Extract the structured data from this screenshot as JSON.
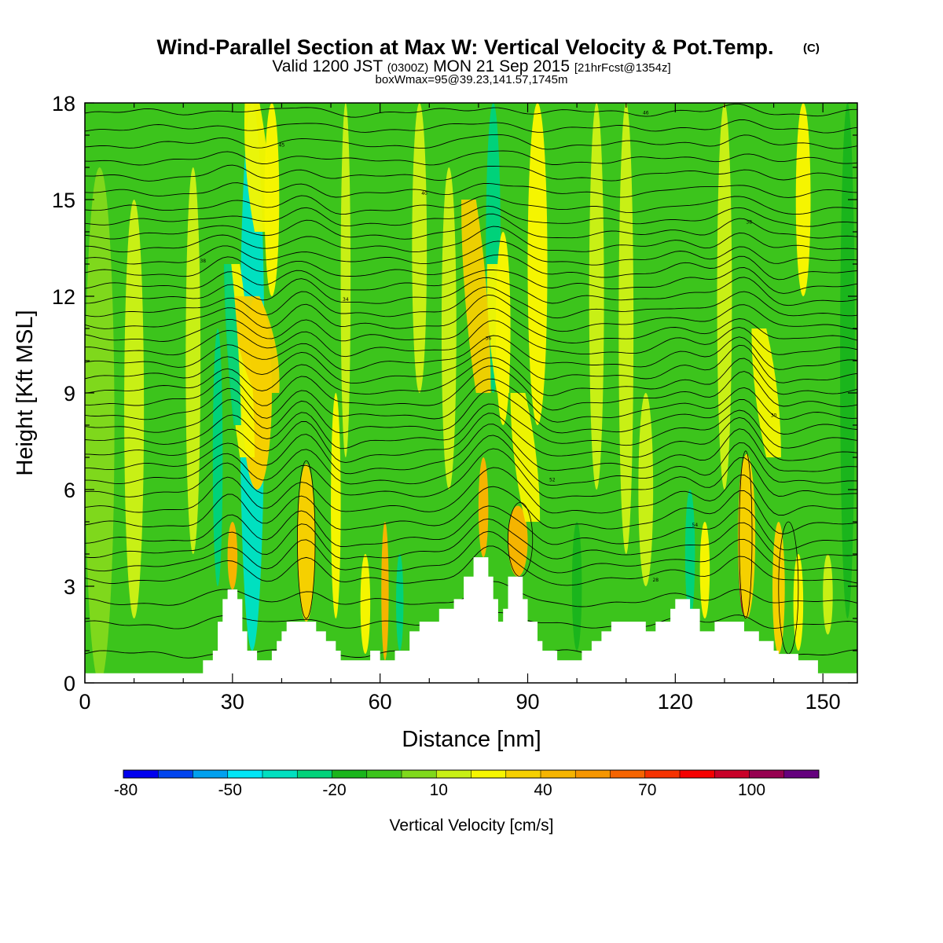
{
  "chart_data": {
    "type": "heatmap",
    "title": "Wind-Parallel Section at Max W: Vertical Velocity & Pot.Temp.",
    "title_mark": "(C)",
    "subtitle": {
      "prefix": "Valid 1200 JST",
      "utc": "(0300Z)",
      "date": "MON 21 Sep 2015",
      "forecast": "[21hrFcst@1354z]"
    },
    "subtitle2": "boxWmax=95@39.23,141.57,1745m",
    "xlabel": "Distance [nm]",
    "ylabel": "Height [Kft MSL]",
    "xlim": [
      0,
      157
    ],
    "ylim": [
      0,
      18
    ],
    "x_ticks": [
      0,
      30,
      60,
      90,
      120,
      150
    ],
    "y_ticks": [
      0,
      3,
      6,
      9,
      12,
      15,
      18
    ],
    "colorbar": {
      "title": "Vertical Velocity [cm/s]",
      "colors": [
        "#0000ee",
        "#0044ee",
        "#00a0ee",
        "#00e5f5",
        "#00e0c0",
        "#00d27a",
        "#1ab51c",
        "#3cc41c",
        "#7fd81c",
        "#c8f015",
        "#f5f500",
        "#f5d000",
        "#f5b400",
        "#f59600",
        "#f56400",
        "#f53200",
        "#f50000",
        "#c80028",
        "#960050",
        "#64007d"
      ],
      "labels": [
        "-80",
        "-50",
        "-20",
        "10",
        "40",
        "70",
        "100"
      ]
    },
    "w_columns": [
      {
        "x": 3,
        "w": 6,
        "top": 16,
        "bot": 0,
        "v": 8
      },
      {
        "x": 10,
        "w": 4,
        "top": 15,
        "bot": 2,
        "v": 10
      },
      {
        "x": 17,
        "w": 5,
        "top": 16,
        "bot": 0,
        "v": -10
      },
      {
        "x": 22,
        "w": 3,
        "top": 16,
        "bot": 4,
        "v": 10
      },
      {
        "x": 27,
        "w": 2,
        "top": 11,
        "bot": 3,
        "v": -25
      },
      {
        "x": 30,
        "w": 2,
        "top": 5,
        "bot": 2.9,
        "v": 40
      },
      {
        "x": 34,
        "w": 5,
        "top": 18,
        "bot": 1,
        "v": -35
      },
      {
        "x": 35,
        "w": 6,
        "top": 12,
        "bot": 6,
        "v": 30
      },
      {
        "x": 38,
        "w": 3,
        "top": 18,
        "bot": 12,
        "v": 25
      },
      {
        "x": 45,
        "w": 2.2,
        "top": 6.5,
        "bot": 2,
        "v": 90
      },
      {
        "x": 45,
        "w": 3.5,
        "top": 6.8,
        "bot": 1.9,
        "v": 35
      },
      {
        "x": 51,
        "w": 2,
        "top": 9,
        "bot": 2,
        "v": 20
      },
      {
        "x": 53,
        "w": 2,
        "top": 18,
        "bot": 7,
        "v": 15
      },
      {
        "x": 57,
        "w": 2,
        "top": 4,
        "bot": 0.9,
        "v": 25
      },
      {
        "x": 61,
        "w": 1.5,
        "top": 5,
        "bot": 0.7,
        "v": 45
      },
      {
        "x": 64,
        "w": 1.5,
        "top": 4,
        "bot": 1,
        "v": -25
      },
      {
        "x": 68,
        "w": 3,
        "top": 18,
        "bot": 9,
        "v": 15
      },
      {
        "x": 74,
        "w": 3,
        "top": 16,
        "bot": 6,
        "v": 10
      },
      {
        "x": 81,
        "w": 2,
        "top": 7,
        "bot": 3.9,
        "v": 40
      },
      {
        "x": 83,
        "w": 3,
        "top": 18,
        "bot": 9,
        "v": -30
      },
      {
        "x": 85,
        "w": 3,
        "top": 14,
        "bot": 8,
        "v": 25
      },
      {
        "x": 88,
        "w": 4,
        "top": 5.5,
        "bot": 3.3,
        "v": 45
      },
      {
        "x": 92,
        "w": 4,
        "top": 18,
        "bot": 8,
        "v": 25
      },
      {
        "x": 100,
        "w": 2,
        "top": 5,
        "bot": 1,
        "v": -15
      },
      {
        "x": 104,
        "w": 3,
        "top": 18,
        "bot": 6,
        "v": 15
      },
      {
        "x": 110,
        "w": 3,
        "top": 18,
        "bot": 4,
        "v": 10
      },
      {
        "x": 114,
        "w": 3,
        "top": 9,
        "bot": 3,
        "v": 15
      },
      {
        "x": 123,
        "w": 2,
        "top": 6,
        "bot": 2,
        "v": -25
      },
      {
        "x": 126,
        "w": 2,
        "top": 5,
        "bot": 2,
        "v": 20
      },
      {
        "x": 130,
        "w": 3,
        "top": 18,
        "bot": 6,
        "v": 15
      },
      {
        "x": 134,
        "w": 1.4,
        "top": 5.3,
        "bot": 2.4,
        "v": 115
      },
      {
        "x": 134,
        "w": 2.5,
        "top": 6.9,
        "bot": 2.1,
        "v": 90
      },
      {
        "x": 134.5,
        "w": 3.5,
        "top": 7.1,
        "bot": 2,
        "v": 35
      },
      {
        "x": 141,
        "w": 2.5,
        "top": 5,
        "bot": 0.9,
        "v": 35
      },
      {
        "x": 145,
        "w": 2,
        "top": 4,
        "bot": 1,
        "v": 20
      },
      {
        "x": 146,
        "w": 3,
        "top": 18,
        "bot": 12,
        "v": 25
      },
      {
        "x": 151,
        "w": 2,
        "top": 4,
        "bot": 1.5,
        "v": 10
      },
      {
        "x": 155,
        "w": 3,
        "top": 18,
        "bot": 2,
        "v": -15
      }
    ],
    "w_slants": [
      {
        "x0": 33,
        "y0": 7,
        "x1": 30,
        "y1": 13,
        "w": 3,
        "v": 25
      },
      {
        "x0": 37,
        "y0": 9,
        "x1": 33,
        "y1": 12,
        "w": 5,
        "v": 30
      },
      {
        "x0": 36,
        "y0": 14,
        "x1": 34,
        "y1": 18,
        "w": 3,
        "v": 25
      },
      {
        "x0": 81,
        "y0": 9,
        "x1": 78,
        "y1": 15,
        "w": 3,
        "v": 30
      },
      {
        "x0": 85,
        "y0": 9,
        "x1": 83,
        "y1": 13,
        "w": 2.5,
        "v": 25
      },
      {
        "x0": 91,
        "y0": 5,
        "x1": 88,
        "y1": 9,
        "w": 3,
        "v": 25
      },
      {
        "x0": 140,
        "y0": 7,
        "x1": 137,
        "y1": 11,
        "w": 3,
        "v": 20
      },
      {
        "x0": 31,
        "y0": 8,
        "x1": 29,
        "y1": 13,
        "w": 1.5,
        "v": -30
      }
    ],
    "terrain": [
      [
        0,
        0.3
      ],
      [
        24,
        0.3
      ],
      [
        24,
        0.7
      ],
      [
        26,
        0.7
      ],
      [
        26,
        1.0
      ],
      [
        27,
        1.0
      ],
      [
        27,
        1.9
      ],
      [
        28,
        1.9
      ],
      [
        28,
        2.6
      ],
      [
        29,
        2.6
      ],
      [
        29,
        2.9
      ],
      [
        31,
        2.9
      ],
      [
        31,
        2.6
      ],
      [
        32,
        2.6
      ],
      [
        32,
        1.6
      ],
      [
        33,
        1.6
      ],
      [
        33,
        1.0
      ],
      [
        35,
        1.0
      ],
      [
        35,
        0.7
      ],
      [
        38,
        0.7
      ],
      [
        38,
        1.0
      ],
      [
        39,
        1.0
      ],
      [
        39,
        1.3
      ],
      [
        40,
        1.3
      ],
      [
        40,
        1.6
      ],
      [
        41,
        1.6
      ],
      [
        41,
        1.9
      ],
      [
        47,
        1.9
      ],
      [
        47,
        1.6
      ],
      [
        49,
        1.6
      ],
      [
        49,
        1.3
      ],
      [
        51,
        1.3
      ],
      [
        51,
        1.0
      ],
      [
        52,
        1.0
      ],
      [
        52,
        0.7
      ],
      [
        58,
        0.7
      ],
      [
        58,
        1.0
      ],
      [
        60,
        1.0
      ],
      [
        60,
        0.7
      ],
      [
        63,
        0.7
      ],
      [
        63,
        1.0
      ],
      [
        66,
        1.0
      ],
      [
        66,
        1.6
      ],
      [
        68,
        1.6
      ],
      [
        68,
        1.9
      ],
      [
        72,
        1.9
      ],
      [
        72,
        2.3
      ],
      [
        75,
        2.3
      ],
      [
        75,
        2.6
      ],
      [
        77,
        2.6
      ],
      [
        77,
        3.3
      ],
      [
        79,
        3.3
      ],
      [
        79,
        3.9
      ],
      [
        82,
        3.9
      ],
      [
        82,
        3.3
      ],
      [
        83,
        3.3
      ],
      [
        83,
        2.6
      ],
      [
        84,
        2.6
      ],
      [
        84,
        1.9
      ],
      [
        85,
        1.9
      ],
      [
        85,
        2.3
      ],
      [
        86,
        2.3
      ],
      [
        86,
        3.3
      ],
      [
        89,
        3.3
      ],
      [
        89,
        2.6
      ],
      [
        90,
        2.6
      ],
      [
        90,
        1.9
      ],
      [
        92,
        1.9
      ],
      [
        92,
        1.3
      ],
      [
        93,
        1.3
      ],
      [
        93,
        1.0
      ],
      [
        96,
        1.0
      ],
      [
        96,
        0.7
      ],
      [
        101,
        0.7
      ],
      [
        101,
        1.0
      ],
      [
        103,
        1.0
      ],
      [
        103,
        1.3
      ],
      [
        105,
        1.3
      ],
      [
        105,
        1.6
      ],
      [
        107,
        1.6
      ],
      [
        107,
        1.9
      ],
      [
        114,
        1.9
      ],
      [
        114,
        1.6
      ],
      [
        116,
        1.6
      ],
      [
        116,
        1.9
      ],
      [
        119,
        1.9
      ],
      [
        119,
        2.3
      ],
      [
        120,
        2.3
      ],
      [
        120,
        2.6
      ],
      [
        123,
        2.6
      ],
      [
        123,
        2.3
      ],
      [
        125,
        2.3
      ],
      [
        125,
        1.6
      ],
      [
        128,
        1.6
      ],
      [
        128,
        1.9
      ],
      [
        134,
        1.9
      ],
      [
        134,
        1.6
      ],
      [
        137,
        1.6
      ],
      [
        137,
        1.3
      ],
      [
        140,
        1.3
      ],
      [
        140,
        1.0
      ],
      [
        141,
        1.0
      ],
      [
        141,
        0.9
      ],
      [
        145,
        0.9
      ],
      [
        145,
        0.7
      ],
      [
        149,
        0.7
      ],
      [
        149,
        0.3
      ],
      [
        157,
        0.3
      ]
    ],
    "theta_levels": [
      {
        "y": 0.9,
        "amp": 0.0,
        "label": ""
      },
      {
        "y": 1.8,
        "amp": 0.2,
        "label": ""
      },
      {
        "y": 2.5,
        "amp": 0.3,
        "label": ""
      },
      {
        "y": 3.2,
        "amp": 0.5,
        "label": "28"
      },
      {
        "y": 3.6,
        "amp": 0.55,
        "label": ""
      },
      {
        "y": 4.0,
        "amp": 0.6,
        "label": ""
      },
      {
        "y": 4.4,
        "amp": 0.65,
        "label": ""
      },
      {
        "y": 4.9,
        "amp": 0.7,
        "label": "54"
      },
      {
        "y": 5.4,
        "amp": 0.7,
        "label": ""
      },
      {
        "y": 5.9,
        "amp": 0.7,
        "label": ""
      },
      {
        "y": 6.3,
        "amp": 0.7,
        "label": "52"
      },
      {
        "y": 6.7,
        "amp": 0.7,
        "label": ""
      },
      {
        "y": 7.1,
        "amp": 0.7,
        "label": ""
      },
      {
        "y": 7.5,
        "amp": 0.65,
        "label": ""
      },
      {
        "y": 7.9,
        "amp": 0.65,
        "label": ""
      },
      {
        "y": 8.3,
        "amp": 0.6,
        "label": "30"
      },
      {
        "y": 8.7,
        "amp": 0.6,
        "label": ""
      },
      {
        "y": 9.1,
        "amp": 0.55,
        "label": ""
      },
      {
        "y": 9.5,
        "amp": 0.55,
        "label": ""
      },
      {
        "y": 9.9,
        "amp": 0.5,
        "label": ""
      },
      {
        "y": 10.3,
        "amp": 0.5,
        "label": ""
      },
      {
        "y": 10.7,
        "amp": 0.45,
        "label": "36"
      },
      {
        "y": 11.1,
        "amp": 0.45,
        "label": ""
      },
      {
        "y": 11.5,
        "amp": 0.4,
        "label": ""
      },
      {
        "y": 11.9,
        "amp": 0.4,
        "label": "34"
      },
      {
        "y": 12.3,
        "amp": 0.35,
        "label": ""
      },
      {
        "y": 12.7,
        "amp": 0.35,
        "label": ""
      },
      {
        "y": 13.1,
        "amp": 0.3,
        "label": "38"
      },
      {
        "y": 13.5,
        "amp": 0.3,
        "label": ""
      },
      {
        "y": 13.9,
        "amp": 0.3,
        "label": ""
      },
      {
        "y": 14.3,
        "amp": 0.25,
        "label": "38"
      },
      {
        "y": 14.7,
        "amp": 0.25,
        "label": ""
      },
      {
        "y": 15.2,
        "amp": 0.2,
        "label": "40"
      },
      {
        "y": 15.7,
        "amp": 0.2,
        "label": ""
      },
      {
        "y": 16.2,
        "amp": 0.15,
        "label": ""
      },
      {
        "y": 16.7,
        "amp": 0.15,
        "label": "45"
      },
      {
        "y": 17.2,
        "amp": 0.1,
        "label": ""
      },
      {
        "y": 17.7,
        "amp": 0.1,
        "label": "46"
      }
    ],
    "w_contours": [
      {
        "x": 45,
        "w": 3.6,
        "top": 6.9,
        "bot": 2.0
      },
      {
        "x": 134.3,
        "w": 2.6,
        "top": 7.2,
        "bot": 2.0
      },
      {
        "x": 88.5,
        "w": 5,
        "top": 5.6,
        "bot": 3.3
      },
      {
        "x": 143,
        "w": 4,
        "top": 5.0,
        "bot": 0.9
      }
    ]
  }
}
